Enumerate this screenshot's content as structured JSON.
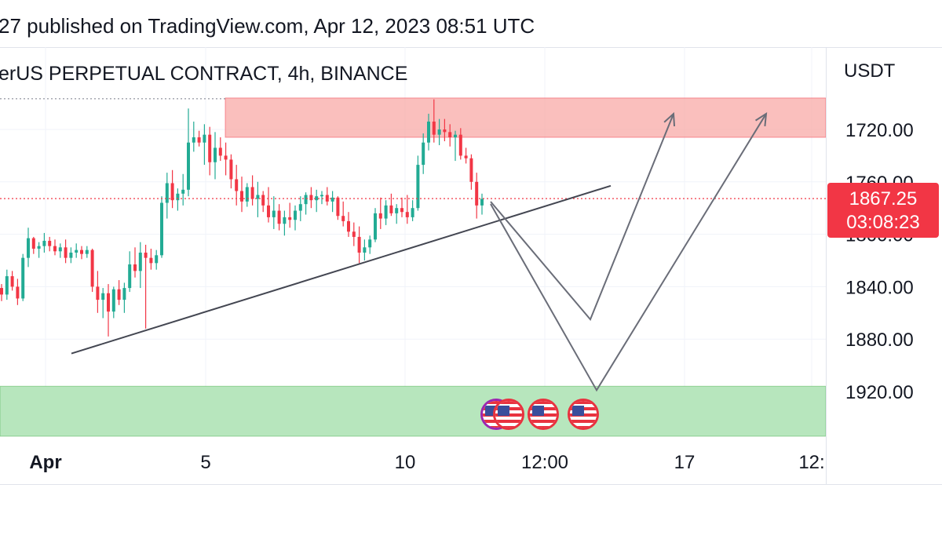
{
  "header": {
    "publish_text": "27 published on TradingView.com, Apr 12, 2023 08:51 UTC",
    "symbol_text": "erUS PERPETUAL CONTRACT, 4h, BINANCE"
  },
  "price_scale": {
    "unit": "USDT",
    "tick_labels": [
      "1920.00",
      "1880.00",
      "1840.00",
      "1800.00",
      "1760.00",
      "1720.00"
    ],
    "current_price": "1867.25",
    "countdown": "03:08:23"
  },
  "time_scale": {
    "tick_labels": [
      "Apr",
      "5",
      "10",
      "12:00",
      "17",
      "12:"
    ]
  },
  "colors": {
    "up": "#22ab94",
    "down": "#f23645",
    "resistance_zone": "#f8a9a7",
    "support_zone": "#b7e6bd",
    "trendline": "#434651",
    "projection": "#6a6d78",
    "price_tag": "#f23645"
  },
  "events": {
    "icons": [
      "us-flag-icon",
      "us-flag-icon",
      "us-flag-icon",
      "us-flag-icon"
    ]
  },
  "chart_data": {
    "type": "candlestick",
    "xlabel": "",
    "ylabel": "USDT",
    "ylim": [
      1690,
      1990
    ],
    "y_ticks": [
      1720,
      1760,
      1800,
      1840,
      1880,
      1920
    ],
    "grid": true,
    "last_price": 1867.25,
    "zones": [
      {
        "kind": "resistance",
        "from": 1914,
        "to": 1944
      },
      {
        "kind": "support",
        "from": 1685,
        "to": 1724
      }
    ],
    "trendline": {
      "from": 1749,
      "to": 1877
    },
    "projections": [
      {
        "lows": [
          1775
        ],
        "targets": [
          1932
        ]
      },
      {
        "lows": [
          1721
        ],
        "targets": [
          1932
        ]
      }
    ],
    "candles": [
      [
        1799,
        1802,
        1789,
        1794
      ],
      [
        1794,
        1813,
        1790,
        1808
      ],
      [
        1808,
        1812,
        1797,
        1800
      ],
      [
        1800,
        1806,
        1786,
        1791
      ],
      [
        1791,
        1825,
        1789,
        1822
      ],
      [
        1822,
        1845,
        1815,
        1837
      ],
      [
        1837,
        1838,
        1825,
        1829
      ],
      [
        1829,
        1834,
        1822,
        1831
      ],
      [
        1831,
        1841,
        1826,
        1835
      ],
      [
        1835,
        1838,
        1827,
        1831
      ],
      [
        1831,
        1836,
        1824,
        1827
      ],
      [
        1827,
        1833,
        1822,
        1830
      ],
      [
        1830,
        1836,
        1818,
        1822
      ],
      [
        1822,
        1830,
        1818,
        1826
      ],
      [
        1826,
        1833,
        1822,
        1828
      ],
      [
        1828,
        1831,
        1821,
        1825
      ],
      [
        1825,
        1831,
        1822,
        1828
      ],
      [
        1828,
        1829,
        1796,
        1800
      ],
      [
        1800,
        1812,
        1780,
        1790
      ],
      [
        1790,
        1799,
        1776,
        1795
      ],
      [
        1795,
        1802,
        1762,
        1781
      ],
      [
        1781,
        1800,
        1776,
        1798
      ],
      [
        1798,
        1805,
        1786,
        1790
      ],
      [
        1790,
        1803,
        1780,
        1799
      ],
      [
        1799,
        1827,
        1796,
        1817
      ],
      [
        1817,
        1830,
        1807,
        1812
      ],
      [
        1812,
        1834,
        1799,
        1826
      ],
      [
        1826,
        1832,
        1768,
        1822
      ],
      [
        1822,
        1829,
        1813,
        1818
      ],
      [
        1818,
        1828,
        1813,
        1824
      ],
      [
        1824,
        1869,
        1822,
        1864
      ],
      [
        1864,
        1887,
        1852,
        1879
      ],
      [
        1879,
        1889,
        1860,
        1866
      ],
      [
        1866,
        1875,
        1858,
        1871
      ],
      [
        1871,
        1886,
        1862,
        1874
      ],
      [
        1874,
        1936,
        1869,
        1910
      ],
      [
        1910,
        1926,
        1903,
        1914
      ],
      [
        1914,
        1919,
        1907,
        1910
      ],
      [
        1910,
        1924,
        1893,
        1916
      ],
      [
        1916,
        1922,
        1885,
        1895
      ],
      [
        1895,
        1918,
        1882,
        1906
      ],
      [
        1906,
        1914,
        1896,
        1900
      ],
      [
        1900,
        1910,
        1885,
        1897
      ],
      [
        1897,
        1901,
        1875,
        1882
      ],
      [
        1882,
        1893,
        1862,
        1873
      ],
      [
        1873,
        1884,
        1857,
        1865
      ],
      [
        1865,
        1879,
        1861,
        1876
      ],
      [
        1876,
        1885,
        1862,
        1867
      ],
      [
        1867,
        1880,
        1853,
        1870
      ],
      [
        1870,
        1873,
        1857,
        1862
      ],
      [
        1862,
        1876,
        1849,
        1853
      ],
      [
        1853,
        1869,
        1844,
        1858
      ],
      [
        1858,
        1863,
        1843,
        1848
      ],
      [
        1848,
        1858,
        1839,
        1853
      ],
      [
        1853,
        1864,
        1845,
        1851
      ],
      [
        1851,
        1862,
        1843,
        1858
      ],
      [
        1858,
        1869,
        1850,
        1863
      ],
      [
        1863,
        1872,
        1855,
        1870
      ],
      [
        1870,
        1876,
        1860,
        1866
      ],
      [
        1866,
        1874,
        1857,
        1869
      ],
      [
        1869,
        1873,
        1863,
        1870
      ],
      [
        1870,
        1876,
        1862,
        1865
      ],
      [
        1865,
        1873,
        1857,
        1868
      ],
      [
        1868,
        1869,
        1851,
        1854
      ],
      [
        1854,
        1865,
        1846,
        1850
      ],
      [
        1850,
        1857,
        1838,
        1842
      ],
      [
        1842,
        1849,
        1831,
        1838
      ],
      [
        1838,
        1846,
        1818,
        1826
      ],
      [
        1826,
        1836,
        1820,
        1830
      ],
      [
        1830,
        1839,
        1825,
        1836
      ],
      [
        1836,
        1860,
        1834,
        1856
      ],
      [
        1856,
        1868,
        1844,
        1852
      ],
      [
        1852,
        1866,
        1847,
        1862
      ],
      [
        1862,
        1871,
        1854,
        1856
      ],
      [
        1856,
        1863,
        1848,
        1860
      ],
      [
        1860,
        1868,
        1853,
        1857
      ],
      [
        1857,
        1870,
        1848,
        1853
      ],
      [
        1853,
        1866,
        1850,
        1860
      ],
      [
        1860,
        1900,
        1858,
        1893
      ],
      [
        1893,
        1917,
        1886,
        1910
      ],
      [
        1910,
        1932,
        1904,
        1926
      ],
      [
        1926,
        1943,
        1910,
        1916
      ],
      [
        1916,
        1928,
        1908,
        1920
      ],
      [
        1920,
        1928,
        1911,
        1918
      ],
      [
        1918,
        1924,
        1907,
        1914
      ],
      [
        1914,
        1919,
        1896,
        1916
      ],
      [
        1916,
        1921,
        1897,
        1900
      ],
      [
        1900,
        1906,
        1894,
        1898
      ],
      [
        1898,
        1901,
        1874,
        1880
      ],
      [
        1880,
        1887,
        1852,
        1862
      ],
      [
        1862,
        1871,
        1855,
        1867
      ]
    ]
  }
}
